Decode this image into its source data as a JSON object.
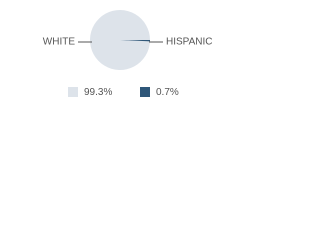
{
  "chart_data": {
    "type": "pie",
    "categories": [
      "WHITE",
      "HISPANIC"
    ],
    "values": [
      99.3,
      0.7
    ],
    "value_labels": [
      "99.3%",
      "0.7%"
    ],
    "colors": [
      "#dde3ea",
      "#2f5779"
    ]
  }
}
